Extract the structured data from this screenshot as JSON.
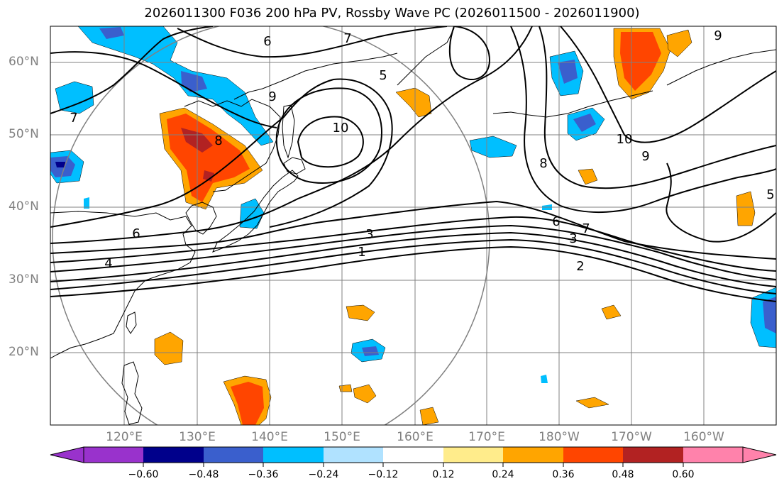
{
  "title": "2026011300 F036 200 hPa PV, Rossby Wave PC (2026011500 - 2026011900)",
  "axes": {
    "lat_labels": [
      "60°N",
      "50°N",
      "40°N",
      "30°N",
      "20°N"
    ],
    "lon_labels": [
      "120°E",
      "130°E",
      "140°E",
      "150°E",
      "160°E",
      "170°E",
      "180°W",
      "170°W",
      "160°W"
    ]
  },
  "contour_labels": [
    "1",
    "2",
    "3",
    "4",
    "5",
    "6",
    "7",
    "8",
    "9",
    "10"
  ],
  "colorbar": {
    "ticks": [
      "−0.60",
      "−0.48",
      "−0.36",
      "−0.24",
      "−0.12",
      "0.12",
      "0.24",
      "0.36",
      "0.48",
      "0.60"
    ],
    "colors": [
      "#9932cc",
      "#00008b",
      "#3a5fcd",
      "#00bfff",
      "#b0e2ff",
      "#ffffff",
      "#ffec8b",
      "#ffa500",
      "#ff4500",
      "#b22222",
      "#ff82ab"
    ]
  }
}
